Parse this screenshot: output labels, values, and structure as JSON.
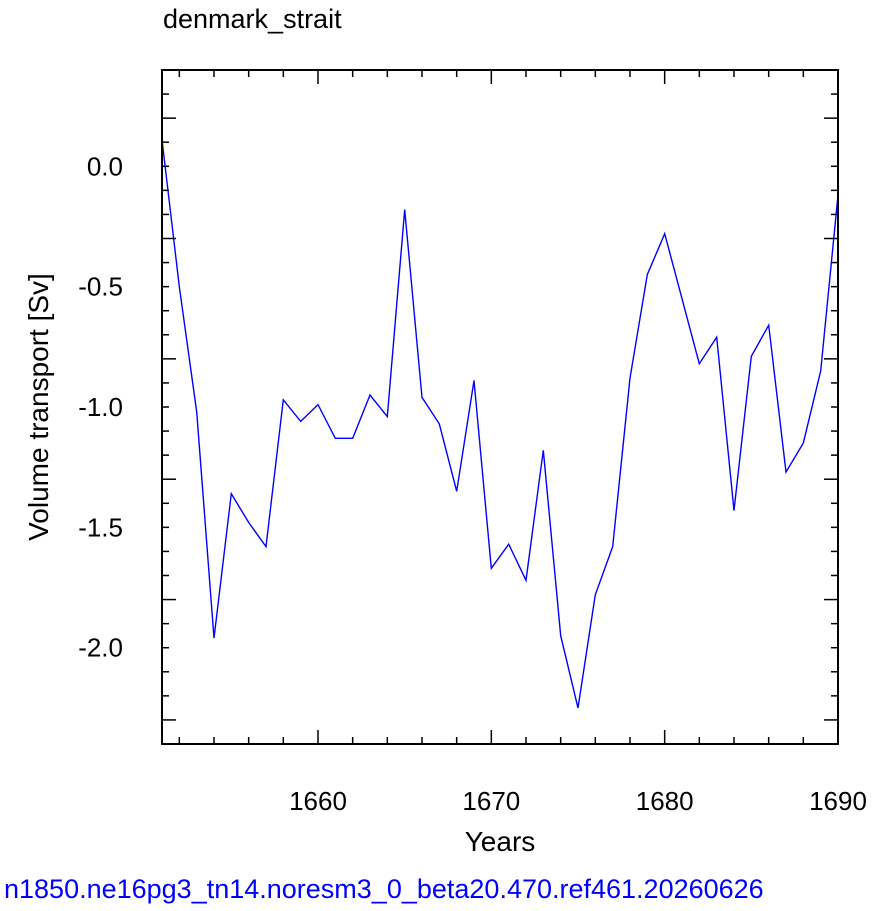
{
  "chart_data": {
    "type": "line",
    "title": "denmark_strait",
    "xlabel": "Years",
    "ylabel": "Volume transport [Sv]",
    "xlim": [
      1651,
      1690
    ],
    "ylim": [
      -2.4,
      0.4
    ],
    "x_ticks": [
      1660,
      1670,
      1680,
      1690
    ],
    "x_tick_labels": [
      "1660",
      "1670",
      "1680",
      "1690"
    ],
    "y_ticks": [
      0.0,
      -0.5,
      -1.0,
      -1.5,
      -2.0
    ],
    "y_tick_labels": [
      "0.0",
      "-0.5",
      "-1.0",
      "-1.5",
      "-2.0"
    ],
    "grid": false,
    "series": [
      {
        "color": "#0000ff",
        "x": [
          1651,
          1652,
          1653,
          1654,
          1655,
          1656,
          1657,
          1658,
          1659,
          1660,
          1661,
          1662,
          1663,
          1664,
          1665,
          1666,
          1667,
          1668,
          1669,
          1670,
          1671,
          1672,
          1673,
          1674,
          1675,
          1676,
          1677,
          1678,
          1679,
          1680,
          1681,
          1682,
          1683,
          1684,
          1685,
          1686,
          1687,
          1688,
          1689,
          1690
        ],
        "y": [
          0.11,
          -0.5,
          -1.02,
          -1.96,
          -1.36,
          -1.48,
          -1.58,
          -0.97,
          -1.06,
          -0.99,
          -1.13,
          -1.13,
          -0.95,
          -1.04,
          -0.18,
          -0.96,
          -1.07,
          -1.35,
          -0.89,
          -1.67,
          -1.57,
          -1.72,
          -1.18,
          -1.95,
          -2.25,
          -1.78,
          -1.58,
          -0.88,
          -0.45,
          -0.28,
          -0.55,
          -0.82,
          -0.71,
          -1.43,
          -0.79,
          -0.66,
          -1.27,
          -1.15,
          -0.85,
          -0.12
        ]
      }
    ]
  },
  "caption": {
    "text": "n1850.ne16pg3_tn14.noresm3_0_beta20.470.ref461.20260626",
    "color": "#0000ff"
  }
}
